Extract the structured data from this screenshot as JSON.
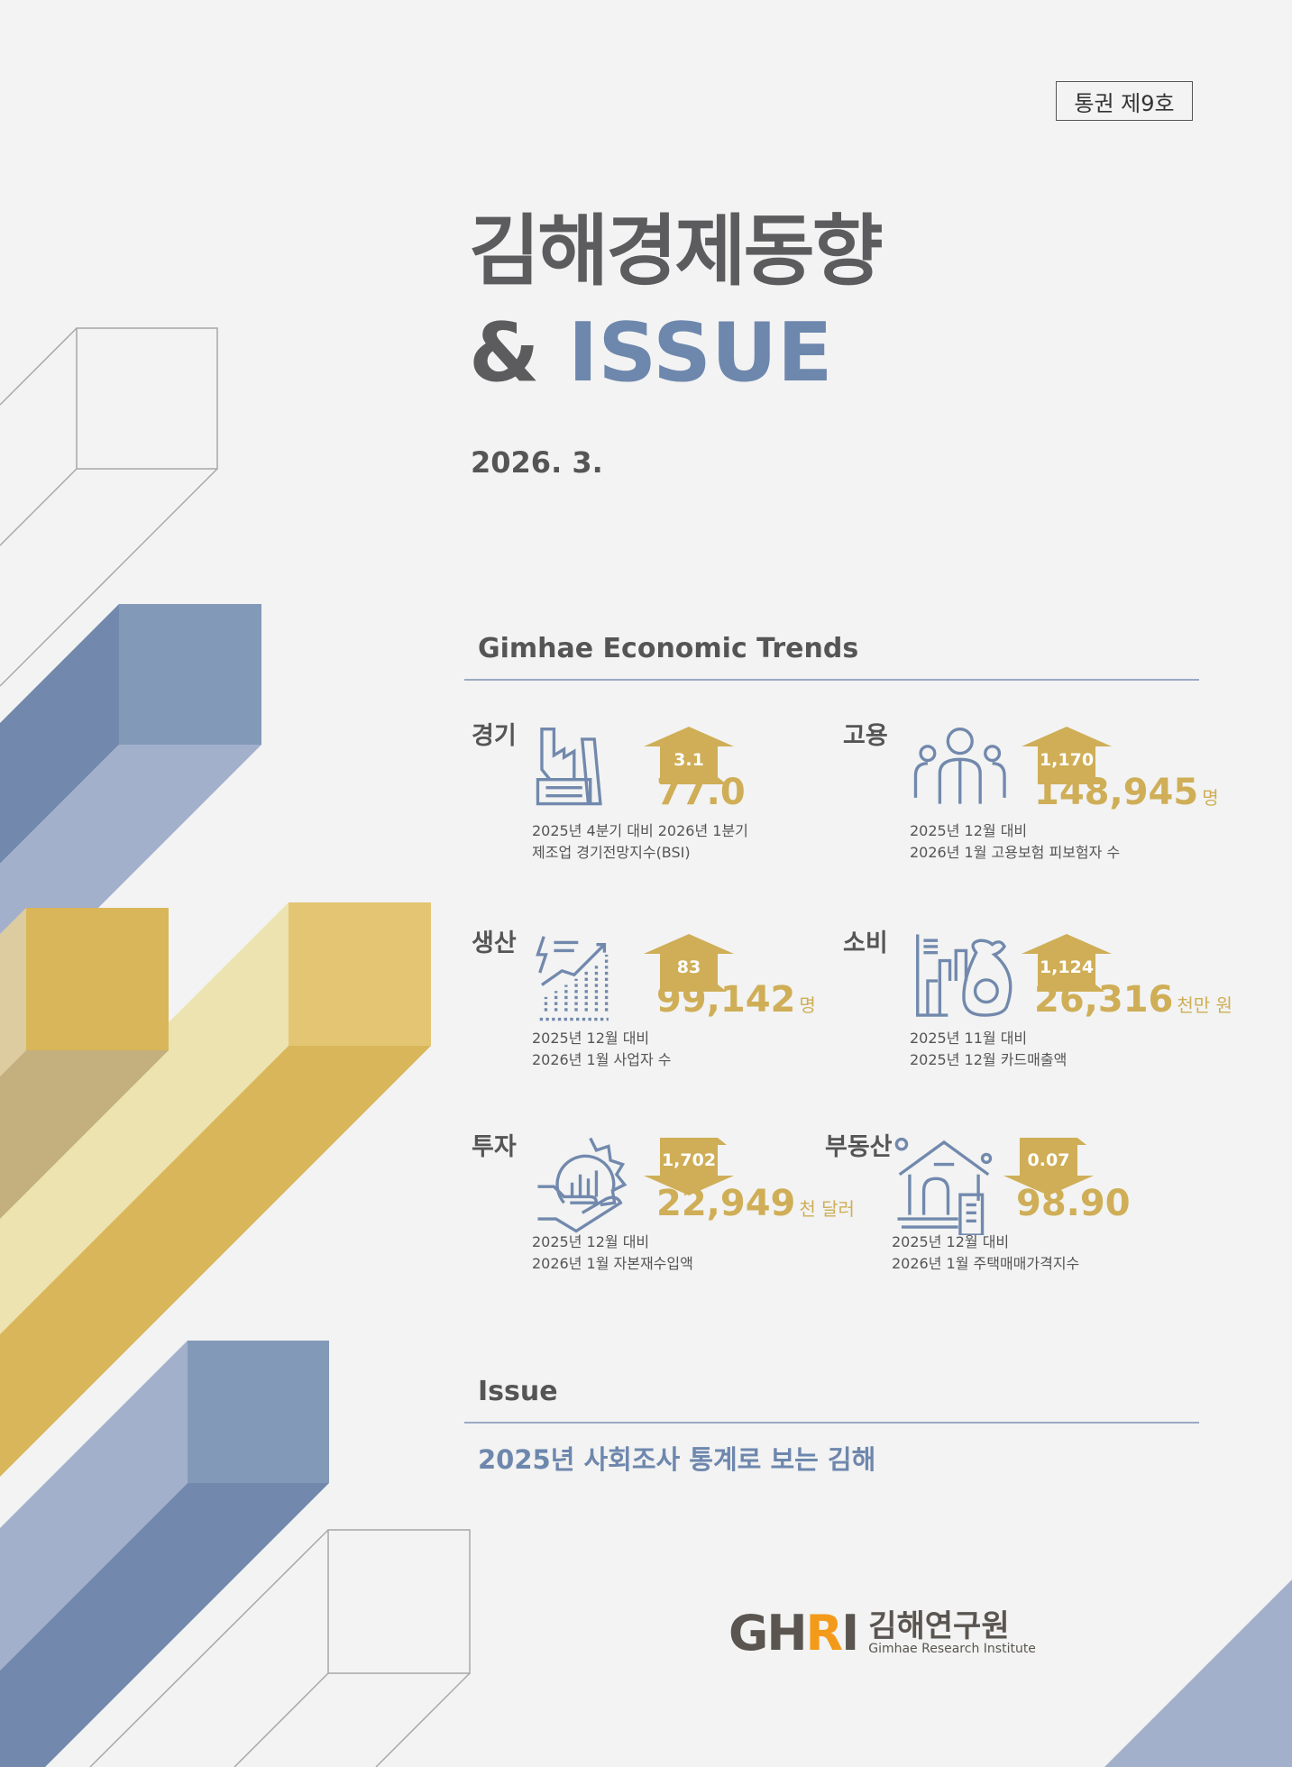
{
  "badge": "통권 제9호",
  "title": {
    "line1": "김해경제동향",
    "amp": "& ",
    "issue": "ISSUE"
  },
  "date": "2026. 3.",
  "trends": {
    "heading": "Gimhae Economic Trends",
    "items": [
      {
        "label": "경기",
        "icon": "factory-icon",
        "change": "3.1",
        "direction": "up",
        "value": "77.0",
        "unit": "",
        "desc1": "2025년 4분기 대비 2026년 1분기",
        "desc2": "제조업 경기전망지수(BSI)"
      },
      {
        "label": "고용",
        "icon": "people-icon",
        "change": "1,170",
        "direction": "up",
        "value": "148,945",
        "unit": "명",
        "desc1": "2025년 12월 대비",
        "desc2": "2026년 1월 고용보험 피보험자 수"
      },
      {
        "label": "생산",
        "icon": "growth-chart-icon",
        "change": "83",
        "direction": "up",
        "value": "99,142",
        "unit": "명",
        "desc1": "2025년 12월 대비",
        "desc2": "2026년 1월 사업자 수"
      },
      {
        "label": "소비",
        "icon": "money-bag-icon",
        "change": "1,124",
        "direction": "up",
        "value": "26,316",
        "unit": "천만 원",
        "desc1": "2025년 11월 대비",
        "desc2": "2025년 12월 카드매출액"
      },
      {
        "label": "투자",
        "icon": "gear-hand-icon",
        "change": "1,702",
        "direction": "down",
        "value": "22,949",
        "unit": "천 달러",
        "desc1": "2025년 12월 대비",
        "desc2": "2026년 1월 자본재수입액"
      },
      {
        "label": "부동산",
        "icon": "house-icon",
        "change": "0.07",
        "direction": "down",
        "value": "98.90",
        "unit": "",
        "desc1": "2025년 12월 대비",
        "desc2": "2026년 1월 주택매매가격지수"
      }
    ]
  },
  "issue": {
    "heading": "Issue",
    "title": "2025년 사회조사 통계로 보는 김해"
  },
  "logo": {
    "mark": "GHRI",
    "name_ko": "김해연구원",
    "name_en": "Gimhae Research Institute"
  },
  "colors": {
    "gold": "#cfae57",
    "blue": "#6e87ad",
    "text": "#5c5c5e"
  }
}
